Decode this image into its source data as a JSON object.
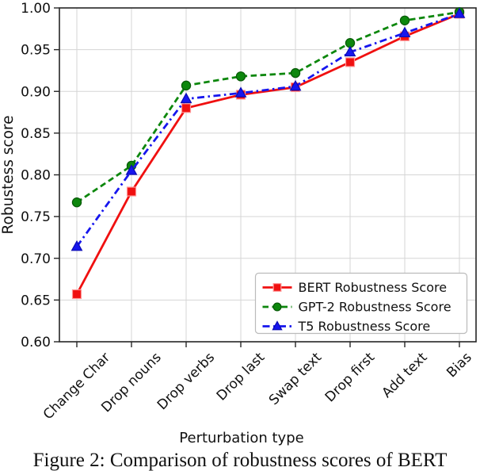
{
  "figure": {
    "caption": "Figure 2: Comparison of robustness scores of BERT"
  },
  "chart_data": {
    "type": "line",
    "title": "",
    "xlabel": "Perturbation type",
    "ylabel": "Robustess score",
    "categories": [
      "Change Char",
      "Drop nouns",
      "Drop verbs",
      "Drop last",
      "Swap text",
      "Drop first",
      "Add text",
      "Bias"
    ],
    "series": [
      {
        "name": "BERT Robustness Score",
        "color": "#f01010",
        "marker": "square",
        "marker_edge": "#ff9898",
        "line_style": "solid",
        "values": [
          0.657,
          0.78,
          0.88,
          0.896,
          0.905,
          0.935,
          0.966,
          0.993
        ]
      },
      {
        "name": "GPT-2 Robustness Score",
        "color": "#0d870d",
        "marker": "circle",
        "marker_edge": "#075907",
        "line_style": "dashed",
        "values": [
          0.767,
          0.811,
          0.907,
          0.918,
          0.922,
          0.958,
          0.985,
          0.995
        ]
      },
      {
        "name": "T5 Robustness Score",
        "color": "#1616ee",
        "marker": "triangle",
        "marker_edge": "#0b0bb4",
        "line_style": "dashdot",
        "values": [
          0.714,
          0.805,
          0.891,
          0.898,
          0.906,
          0.947,
          0.97,
          0.993
        ]
      }
    ],
    "ylim": [
      0.6,
      1.0
    ],
    "ytick_step": 0.05,
    "yticks": [
      "0.60",
      "0.65",
      "0.70",
      "0.75",
      "0.80",
      "0.85",
      "0.90",
      "0.95",
      "1.00"
    ],
    "xticks_rotation": 45,
    "grid": true,
    "legend_position": "lower right"
  },
  "colors": {
    "grid": "#d5d5d5",
    "spine": "#262626",
    "background": "#ffffff",
    "legend_border": "#bbbbbb",
    "legend_background": "#ffffff"
  }
}
